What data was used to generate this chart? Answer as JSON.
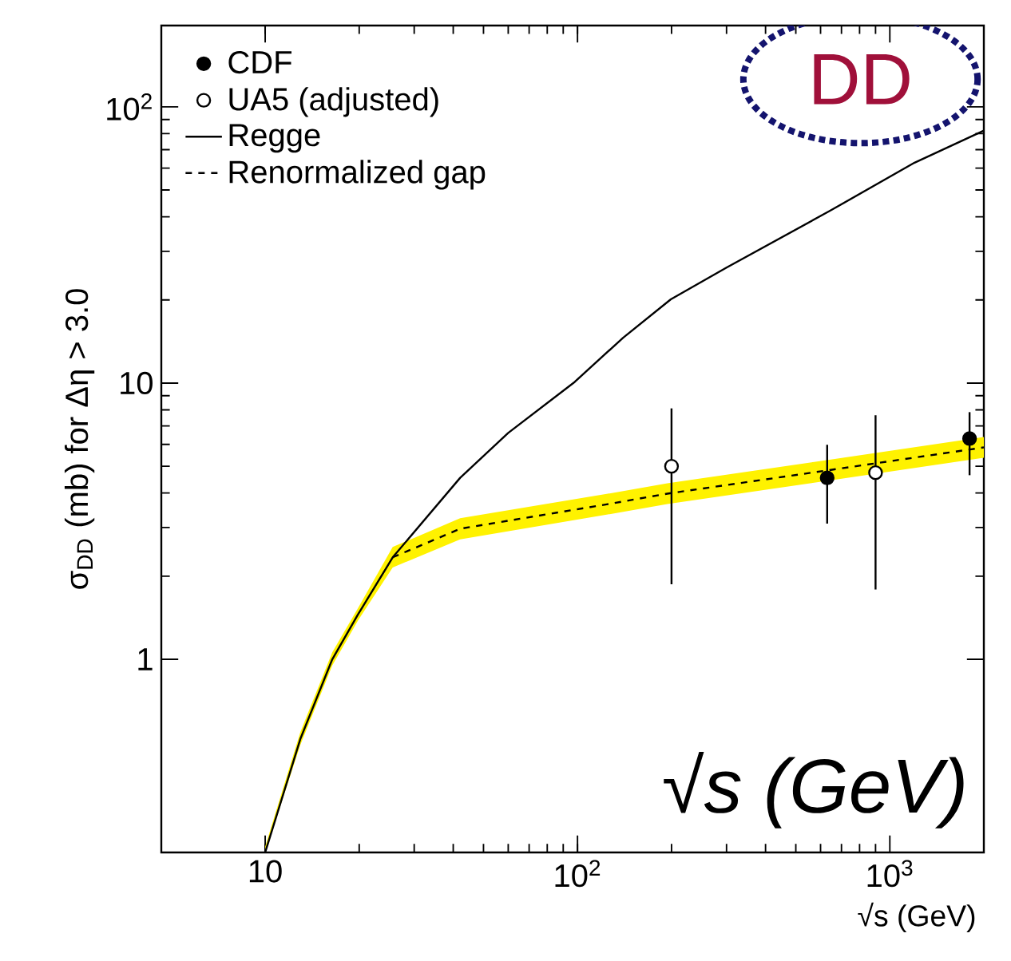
{
  "chart_data": {
    "type": "line",
    "xlabel": "√s (GeV)",
    "ylabel": "σ$_{DD}$ (mb) for Δη > 3.0",
    "log": "xy",
    "xlim": [
      4.65,
      2000
    ],
    "ylim": [
      0.2,
      197
    ],
    "xticks": [
      {
        "value": 10,
        "label": "10"
      },
      {
        "value": 100,
        "label": "10$^{2}$"
      },
      {
        "value": 1000,
        "label": "10$^{3}$"
      }
    ],
    "yticks": [
      1,
      10,
      {
        "value": 100,
        "label": "10$^{2}$"
      }
    ],
    "grid": false,
    "legend": "top left",
    "annotations": [
      "DD",
      "√s (GeV)"
    ],
    "series": [
      {
        "name": "CDF",
        "type": "scatter",
        "marker": "circle",
        "color": "#000000",
        "x": [
          630,
          1800
        ],
        "values": [
          4.54,
          6.3
        ],
        "errors": [
          [
            3.1,
            5.98
          ],
          [
            4.64,
            7.85
          ]
        ]
      },
      {
        "name": "UA5 (adjusted)",
        "type": "scatter",
        "marker": "circle",
        "color": "#ffffff",
        "x": [
          200,
          900
        ],
        "values": [
          5.0,
          4.74
        ],
        "errors": [
          [
            1.87,
            8.1
          ],
          [
            1.79,
            7.65
          ]
        ]
      },
      {
        "name": "Regge",
        "line_style": "solid",
        "marker": "none",
        "color": "#000000",
        "x": [
          10,
          12.96,
          16.4,
          19.8,
          25.6,
          42.1,
          60,
          98,
          140,
          199,
          300,
          647,
          1200,
          2000
        ],
        "values": [
          0.2,
          0.515,
          1.0,
          1.45,
          2.34,
          4.54,
          6.6,
          10.1,
          14.6,
          20.1,
          26.2,
          42.2,
          62.8,
          82
        ]
      },
      {
        "name": "Renormalized gap",
        "line_style": "dashed",
        "marker": "none",
        "color": "#000000",
        "x": [
          10,
          12.96,
          16.4,
          19.8,
          25.6,
          42.1,
          124,
          194,
          647,
          2000
        ],
        "values": [
          null,
          null,
          null,
          null,
          2.34,
          2.97,
          3.64,
          3.98,
          4.85,
          5.85
        ],
        "lower": [
          0.2,
          0.49,
          0.95,
          1.38,
          2.15,
          2.72,
          3.34,
          3.65,
          4.45,
          5.37
        ],
        "upper": [
          0.21,
          0.545,
          1.06,
          1.53,
          2.55,
          3.24,
          3.97,
          4.34,
          5.29,
          6.38
        ]
      }
    ]
  }
}
